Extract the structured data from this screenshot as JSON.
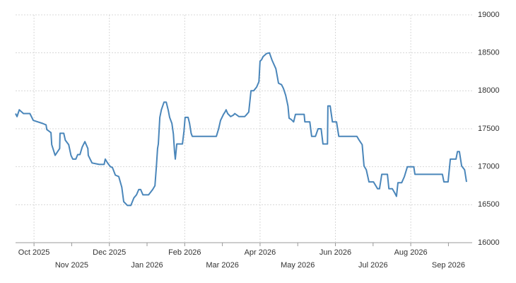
{
  "chart_data": {
    "type": "line",
    "xticks": [
      {
        "value": 0,
        "label": "Oct 2025"
      },
      {
        "value": 1,
        "label": "Nov 2025"
      },
      {
        "value": 2,
        "label": "Dec 2025"
      },
      {
        "value": 3,
        "label": "Jan 2026"
      },
      {
        "value": 4,
        "label": "Feb 2026"
      },
      {
        "value": 5,
        "label": "Mar 2026"
      },
      {
        "value": 6,
        "label": "Apr 2026"
      },
      {
        "value": 7,
        "label": "May 2026"
      },
      {
        "value": 8,
        "label": "Jun 2026"
      },
      {
        "value": 9,
        "label": "Jul 2026"
      },
      {
        "value": 10,
        "label": "Aug 2026"
      },
      {
        "value": 11,
        "label": "Sep 2026"
      }
    ],
    "xlim": [
      -0.49,
      11.63
    ],
    "ylim": [
      16000,
      19000
    ],
    "yticks": [
      16000,
      16500,
      17000,
      17500,
      18000,
      18500,
      19000
    ],
    "grid": true,
    "x": [
      -0.49,
      -0.45,
      -0.39,
      -0.28,
      -0.11,
      -0.02,
      0.23,
      0.32,
      0.34,
      0.45,
      0.47,
      0.56,
      0.68,
      0.69,
      0.79,
      0.83,
      0.92,
      0.98,
      1.03,
      1.11,
      1.16,
      1.22,
      1.28,
      1.35,
      1.43,
      1.44,
      1.54,
      1.73,
      1.86,
      1.89,
      1.95,
      2.03,
      2.08,
      2.16,
      2.25,
      2.33,
      2.38,
      2.48,
      2.57,
      2.65,
      2.72,
      2.78,
      2.83,
      2.89,
      3.04,
      3.15,
      3.21,
      3.25,
      3.28,
      3.3,
      3.34,
      3.38,
      3.45,
      3.51,
      3.56,
      3.6,
      3.66,
      3.7,
      3.73,
      3.75,
      3.79,
      3.94,
      3.98,
      4.01,
      4.09,
      4.13,
      4.17,
      4.2,
      4.84,
      4.9,
      4.95,
      5.03,
      5.07,
      5.1,
      5.14,
      5.22,
      5.29,
      5.33,
      5.44,
      5.59,
      5.63,
      5.7,
      5.76,
      5.83,
      5.91,
      5.97,
      6.0,
      6.04,
      6.08,
      6.17,
      6.25,
      6.32,
      6.42,
      6.49,
      6.57,
      6.62,
      6.68,
      6.74,
      6.77,
      6.83,
      6.89,
      6.94,
      7.17,
      7.19,
      7.32,
      7.37,
      7.47,
      7.54,
      7.62,
      7.67,
      7.79,
      7.8,
      7.86,
      7.92,
      8.03,
      8.09,
      8.57,
      8.63,
      8.71,
      8.76,
      8.82,
      8.89,
      9.01,
      9.12,
      9.17,
      9.23,
      9.38,
      9.42,
      9.51,
      9.57,
      9.62,
      9.66,
      9.76,
      9.83,
      9.91,
      10.08,
      10.11,
      10.84,
      10.88,
      10.99,
      11.05,
      11.2,
      11.24,
      11.29,
      11.35,
      11.43,
      11.48
    ],
    "series": [
      {
        "color": "#4a86ba",
        "values": [
          17700,
          17660,
          17750,
          17700,
          17700,
          17610,
          17570,
          17550,
          17490,
          17450,
          17290,
          17150,
          17240,
          17440,
          17440,
          17350,
          17290,
          17150,
          17100,
          17100,
          17160,
          17160,
          17260,
          17330,
          17240,
          17150,
          17050,
          17030,
          17030,
          17100,
          17050,
          17000,
          16990,
          16890,
          16870,
          16730,
          16540,
          16490,
          16490,
          16590,
          16630,
          16700,
          16700,
          16630,
          16630,
          16700,
          16750,
          17010,
          17240,
          17300,
          17650,
          17750,
          17850,
          17850,
          17750,
          17650,
          17570,
          17430,
          17200,
          17100,
          17300,
          17300,
          17470,
          17650,
          17650,
          17570,
          17440,
          17400,
          17400,
          17500,
          17610,
          17690,
          17720,
          17750,
          17700,
          17660,
          17680,
          17700,
          17660,
          17660,
          17680,
          17720,
          18000,
          18000,
          18050,
          18120,
          18390,
          18410,
          18450,
          18490,
          18500,
          18400,
          18290,
          18100,
          18080,
          18030,
          17940,
          17800,
          17640,
          17620,
          17590,
          17690,
          17690,
          17590,
          17590,
          17400,
          17400,
          17500,
          17500,
          17300,
          17300,
          17800,
          17800,
          17590,
          17590,
          17400,
          17400,
          17350,
          17290,
          17010,
          16960,
          16800,
          16800,
          16710,
          16710,
          16900,
          16900,
          16710,
          16710,
          16660,
          16610,
          16790,
          16790,
          16870,
          17000,
          17000,
          16900,
          16900,
          16800,
          16800,
          17100,
          17100,
          17200,
          17200,
          17010,
          16960,
          16800
        ]
      }
    ]
  }
}
